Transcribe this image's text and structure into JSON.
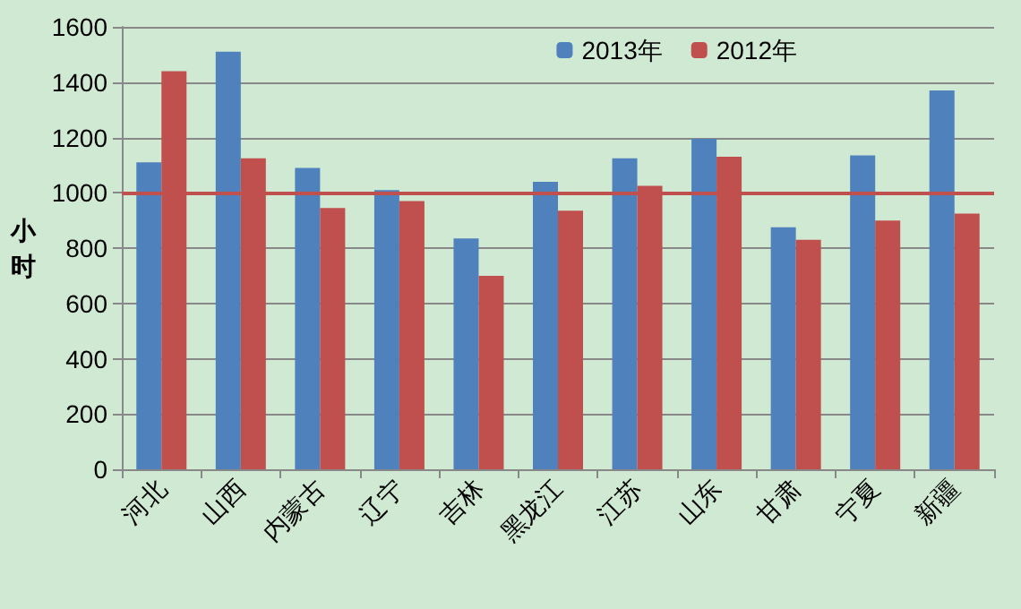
{
  "chart_data": {
    "type": "bar",
    "ylabel": "小时",
    "categories": [
      "河北",
      "山西",
      "内蒙古",
      "辽宁",
      "吉林",
      "黑龙江",
      "江苏",
      "山东",
      "甘肃",
      "宁夏",
      "新疆"
    ],
    "series": [
      {
        "name": "2013年",
        "color": "#4f81bd",
        "values": [
          1110,
          1510,
          1090,
          1010,
          835,
          1040,
          1125,
          1195,
          875,
          1135,
          1370
        ]
      },
      {
        "name": "2012年",
        "color": "#c0504d",
        "values": [
          1440,
          1125,
          945,
          970,
          700,
          935,
          1025,
          1130,
          830,
          900,
          925
        ]
      }
    ],
    "ylim": [
      0,
      1600
    ],
    "yticks": [
      0,
      200,
      400,
      600,
      800,
      1000,
      1200,
      1400,
      1600
    ],
    "ref_lines": [
      {
        "axis": "y",
        "value": 1000,
        "color": "#c0504d"
      }
    ],
    "grid": "y",
    "legend": "top right"
  }
}
